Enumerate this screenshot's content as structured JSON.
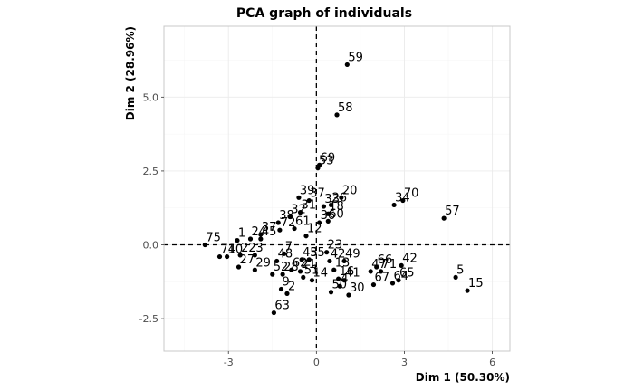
{
  "chart_data": {
    "type": "scatter",
    "title": "PCA graph of individuals",
    "xlabel": "Dim 1 (50.30%)",
    "ylabel": "Dim 2 (28.96%)",
    "xlim": [
      -5.2,
      6.6
    ],
    "ylim": [
      -3.6,
      7.4
    ],
    "xticks": [
      -3,
      0,
      3,
      6
    ],
    "yticks": [
      -2.5,
      0.0,
      2.5,
      5.0
    ],
    "ytick_labels": [
      "-2.5",
      "0.0",
      "2.5",
      "5.0"
    ],
    "grid": true,
    "reference_lines": {
      "x": 0,
      "y": 0,
      "style": "dashed"
    },
    "points": [
      {
        "label": "59",
        "x": 1.05,
        "y": 6.1
      },
      {
        "label": "58",
        "x": 0.7,
        "y": 4.4
      },
      {
        "label": "69",
        "x": 0.1,
        "y": 2.7
      },
      {
        "label": "53",
        "x": 0.05,
        "y": 2.6
      },
      {
        "label": "70",
        "x": 2.95,
        "y": 1.5
      },
      {
        "label": "34",
        "x": 2.65,
        "y": 1.35
      },
      {
        "label": "57",
        "x": 4.35,
        "y": 0.9
      },
      {
        "label": "20",
        "x": 0.85,
        "y": 1.6
      },
      {
        "label": "39",
        "x": -0.6,
        "y": 1.6
      },
      {
        "label": "37",
        "x": -0.25,
        "y": 1.5
      },
      {
        "label": "26",
        "x": 0.5,
        "y": 1.35
      },
      {
        "label": "33",
        "x": 0.25,
        "y": 1.3
      },
      {
        "label": "31",
        "x": -0.55,
        "y": 1.1
      },
      {
        "label": "32",
        "x": -0.9,
        "y": 0.95
      },
      {
        "label": "18",
        "x": 0.4,
        "y": 1.05
      },
      {
        "label": "60",
        "x": 0.4,
        "y": 0.8
      },
      {
        "label": "38",
        "x": -1.3,
        "y": 0.75
      },
      {
        "label": "36",
        "x": 0.1,
        "y": 0.75
      },
      {
        "label": "61",
        "x": -0.75,
        "y": 0.55
      },
      {
        "label": "72",
        "x": -1.25,
        "y": 0.5
      },
      {
        "label": "37",
        "x": -1.9,
        "y": 0.35
      },
      {
        "label": "24",
        "x": -2.25,
        "y": 0.2
      },
      {
        "label": "45",
        "x": -1.9,
        "y": 0.2
      },
      {
        "label": "1",
        "x": -2.7,
        "y": 0.15
      },
      {
        "label": "12",
        "x": -0.35,
        "y": 0.3
      },
      {
        "label": "75",
        "x": -3.8,
        "y": 0.0
      },
      {
        "label": "74",
        "x": -3.3,
        "y": -0.4
      },
      {
        "label": "10",
        "x": -3.05,
        "y": -0.4
      },
      {
        "label": "22",
        "x": -2.6,
        "y": -0.35
      },
      {
        "label": "3",
        "x": -2.1,
        "y": -0.35
      },
      {
        "label": "27",
        "x": -2.65,
        "y": -0.75
      },
      {
        "label": "29",
        "x": -2.1,
        "y": -0.85
      },
      {
        "label": "7",
        "x": -1.1,
        "y": -0.3
      },
      {
        "label": "48",
        "x": -1.35,
        "y": -0.55
      },
      {
        "label": "52",
        "x": -1.5,
        "y": -1.0
      },
      {
        "label": "28",
        "x": -1.15,
        "y": -1.0
      },
      {
        "label": "43",
        "x": -0.5,
        "y": -0.5
      },
      {
        "label": "55",
        "x": -0.25,
        "y": -0.5
      },
      {
        "label": "62",
        "x": -0.85,
        "y": -0.85
      },
      {
        "label": "21",
        "x": -0.55,
        "y": -0.9
      },
      {
        "label": "51",
        "x": -0.45,
        "y": -1.1
      },
      {
        "label": "14",
        "x": -0.15,
        "y": -1.2
      },
      {
        "label": "23",
        "x": 0.35,
        "y": -0.25
      },
      {
        "label": "49",
        "x": 0.95,
        "y": -0.55
      },
      {
        "label": "42",
        "x": 0.45,
        "y": -0.55
      },
      {
        "label": "13",
        "x": 0.6,
        "y": -0.85
      },
      {
        "label": "41",
        "x": 0.95,
        "y": -1.2
      },
      {
        "label": "16",
        "x": 0.75,
        "y": -1.15
      },
      {
        "label": "4",
        "x": 0.8,
        "y": -1.4
      },
      {
        "label": "50",
        "x": 0.5,
        "y": -1.6
      },
      {
        "label": "30",
        "x": 1.1,
        "y": -1.7
      },
      {
        "label": "66",
        "x": 2.05,
        "y": -0.75
      },
      {
        "label": "47",
        "x": 1.85,
        "y": -0.9
      },
      {
        "label": "71",
        "x": 2.2,
        "y": -0.9
      },
      {
        "label": "42",
        "x": 2.9,
        "y": -0.7
      },
      {
        "label": "65",
        "x": 2.8,
        "y": -1.2
      },
      {
        "label": "64",
        "x": 2.6,
        "y": -1.3
      },
      {
        "label": "67",
        "x": 1.95,
        "y": -1.35
      },
      {
        "label": "5",
        "x": 4.75,
        "y": -1.1
      },
      {
        "label": "15",
        "x": 5.15,
        "y": -1.55
      },
      {
        "label": "9",
        "x": -1.2,
        "y": -1.5
      },
      {
        "label": "2",
        "x": -1.0,
        "y": -1.65
      },
      {
        "label": "63",
        "x": -1.45,
        "y": -2.3
      }
    ]
  }
}
